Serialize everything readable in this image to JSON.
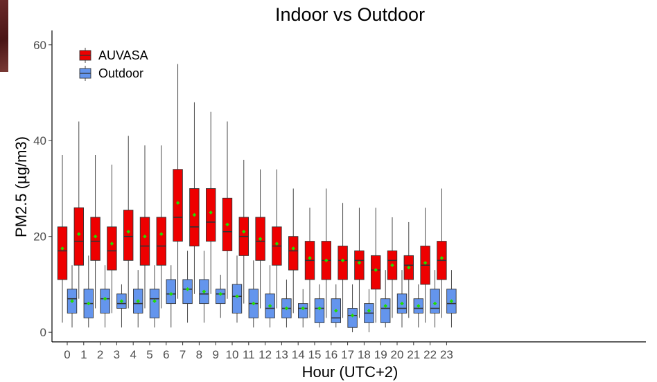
{
  "chart_data": {
    "type": "box",
    "title": "Indoor vs Outdoor",
    "xlabel": "Hour (UTC+2)",
    "ylabel": "PM2.5 (µg/m3)",
    "ylim": [
      -2,
      63
    ],
    "yticks": [
      0,
      20,
      40,
      60
    ],
    "categories": [
      "0",
      "1",
      "2",
      "3",
      "4",
      "5",
      "6",
      "7",
      "8",
      "9",
      "10",
      "11",
      "12",
      "13",
      "14",
      "15",
      "16",
      "17",
      "18",
      "19",
      "20",
      "21",
      "22",
      "23"
    ],
    "legend_position": "top-left",
    "series": [
      {
        "name": "AUVASA",
        "color": "#ee0000",
        "boxes": [
          {
            "min": 2,
            "q1": 11,
            "median": 17,
            "q3": 22,
            "max": 37,
            "mean": 17.5
          },
          {
            "min": 7,
            "q1": 14,
            "median": 19,
            "q3": 26,
            "max": 44,
            "mean": 20.5
          },
          {
            "min": 5,
            "q1": 15,
            "median": 19,
            "q3": 24,
            "max": 37,
            "mean": 20
          },
          {
            "min": 4,
            "q1": 13,
            "median": 17,
            "q3": 22,
            "max": 35,
            "mean": 18.5
          },
          {
            "min": 5,
            "q1": 15,
            "median": 20,
            "q3": 25.5,
            "max": 41,
            "mean": 21
          },
          {
            "min": 5,
            "q1": 14,
            "median": 18,
            "q3": 24,
            "max": 39,
            "mean": 20
          },
          {
            "min": 5,
            "q1": 14,
            "median": 18,
            "q3": 24,
            "max": 39,
            "mean": 20.5
          },
          {
            "min": 7,
            "q1": 19,
            "median": 24,
            "q3": 34,
            "max": 56,
            "mean": 27
          },
          {
            "min": 8,
            "q1": 18,
            "median": 22,
            "q3": 30,
            "max": 48,
            "mean": 24.5
          },
          {
            "min": 8,
            "q1": 19,
            "median": 23,
            "q3": 30,
            "max": 46,
            "mean": 25
          },
          {
            "min": 7,
            "q1": 17,
            "median": 21,
            "q3": 28,
            "max": 44,
            "mean": 22.5
          },
          {
            "min": 6,
            "q1": 16,
            "median": 20,
            "q3": 24,
            "max": 36,
            "mean": 21
          },
          {
            "min": 5,
            "q1": 15,
            "median": 19,
            "q3": 24,
            "max": 34,
            "mean": 19.5
          },
          {
            "min": 5,
            "q1": 14,
            "median": 18,
            "q3": 22,
            "max": 34,
            "mean": 18.5
          },
          {
            "min": 4,
            "q1": 13,
            "median": 17,
            "q3": 20,
            "max": 30,
            "mean": 17.5
          },
          {
            "min": 3,
            "q1": 11,
            "median": 15,
            "q3": 19,
            "max": 26,
            "mean": 15.5
          },
          {
            "min": 3,
            "q1": 11,
            "median": 15,
            "q3": 19,
            "max": 30,
            "mean": 15
          },
          {
            "min": 3,
            "q1": 11,
            "median": 15,
            "q3": 18,
            "max": 27,
            "mean": 15
          },
          {
            "min": 3,
            "q1": 11,
            "median": 15,
            "q3": 17,
            "max": 26,
            "mean": 14.5
          },
          {
            "min": 2,
            "q1": 9,
            "median": 13,
            "q3": 16,
            "max": 26,
            "mean": 13
          },
          {
            "min": 3,
            "q1": 11,
            "median": 15,
            "q3": 17,
            "max": 24,
            "mean": 14
          },
          {
            "min": 3,
            "q1": 11,
            "median": 14,
            "q3": 16,
            "max": 23,
            "mean": 13.5
          },
          {
            "min": 2,
            "q1": 10,
            "median": 14,
            "q3": 18,
            "max": 26,
            "mean": 14.5
          },
          {
            "min": 3,
            "q1": 11,
            "median": 15,
            "q3": 19,
            "max": 30,
            "mean": 15.5
          }
        ]
      },
      {
        "name": "Outdoor",
        "color": "#6495ed",
        "boxes": [
          {
            "min": 1,
            "q1": 4,
            "median": 7,
            "q3": 9,
            "max": 14,
            "mean": 6.5
          },
          {
            "min": 1,
            "q1": 3,
            "median": 6,
            "q3": 9,
            "max": 16,
            "mean": 6
          },
          {
            "min": 1,
            "q1": 4,
            "median": 7,
            "q3": 9,
            "max": 14,
            "mean": 7
          },
          {
            "min": 1,
            "q1": 5,
            "median": 6,
            "q3": 8,
            "max": 10,
            "mean": 6.5
          },
          {
            "min": 1,
            "q1": 4,
            "median": 6,
            "q3": 9,
            "max": 13,
            "mean": 6.5
          },
          {
            "min": 1,
            "q1": 3,
            "median": 7,
            "q3": 9,
            "max": 14,
            "mean": 6.5
          },
          {
            "min": 1,
            "q1": 6,
            "median": 8,
            "q3": 11,
            "max": 14,
            "mean": 8
          },
          {
            "min": 2,
            "q1": 6,
            "median": 9,
            "q3": 11,
            "max": 17,
            "mean": 9
          },
          {
            "min": 2,
            "q1": 6,
            "median": 8,
            "q3": 11,
            "max": 17,
            "mean": 8.5
          },
          {
            "min": 3,
            "q1": 6,
            "median": 8,
            "q3": 9,
            "max": 12,
            "mean": 8
          },
          {
            "min": 2,
            "q1": 4,
            "median": 7.5,
            "q3": 10,
            "max": 16,
            "mean": 7.5
          },
          {
            "min": 1,
            "q1": 3,
            "median": 6,
            "q3": 9,
            "max": 15,
            "mean": 6
          },
          {
            "min": 1,
            "q1": 3,
            "median": 5,
            "q3": 8,
            "max": 14,
            "mean": 5.5
          },
          {
            "min": 1,
            "q1": 3,
            "median": 5,
            "q3": 7,
            "max": 11,
            "mean": 5
          },
          {
            "min": 1,
            "q1": 3,
            "median": 5,
            "q3": 6,
            "max": 9,
            "mean": 5
          },
          {
            "min": 1,
            "q1": 2,
            "median": 5,
            "q3": 7,
            "max": 10,
            "mean": 5
          },
          {
            "min": 1,
            "q1": 2,
            "median": 3,
            "q3": 7,
            "max": 10,
            "mean": 4.5
          },
          {
            "min": 0,
            "q1": 1,
            "median": 3.5,
            "q3": 5,
            "max": 10,
            "mean": 3.5
          },
          {
            "min": 0,
            "q1": 2,
            "median": 4,
            "q3": 6,
            "max": 9,
            "mean": 4.5
          },
          {
            "min": 1,
            "q1": 2,
            "median": 5,
            "q3": 7,
            "max": 13,
            "mean": 5.5
          },
          {
            "min": 1,
            "q1": 4,
            "median": 5,
            "q3": 8,
            "max": 13,
            "mean": 6
          },
          {
            "min": 1,
            "q1": 4,
            "median": 5,
            "q3": 7,
            "max": 10,
            "mean": 5.5
          },
          {
            "min": 1,
            "q1": 4,
            "median": 5,
            "q3": 9,
            "max": 13,
            "mean": 6
          },
          {
            "min": 1,
            "q1": 4,
            "median": 6,
            "q3": 9,
            "max": 13,
            "mean": 6.5
          }
        ]
      }
    ],
    "mean_marker_color": "#22dd00"
  }
}
